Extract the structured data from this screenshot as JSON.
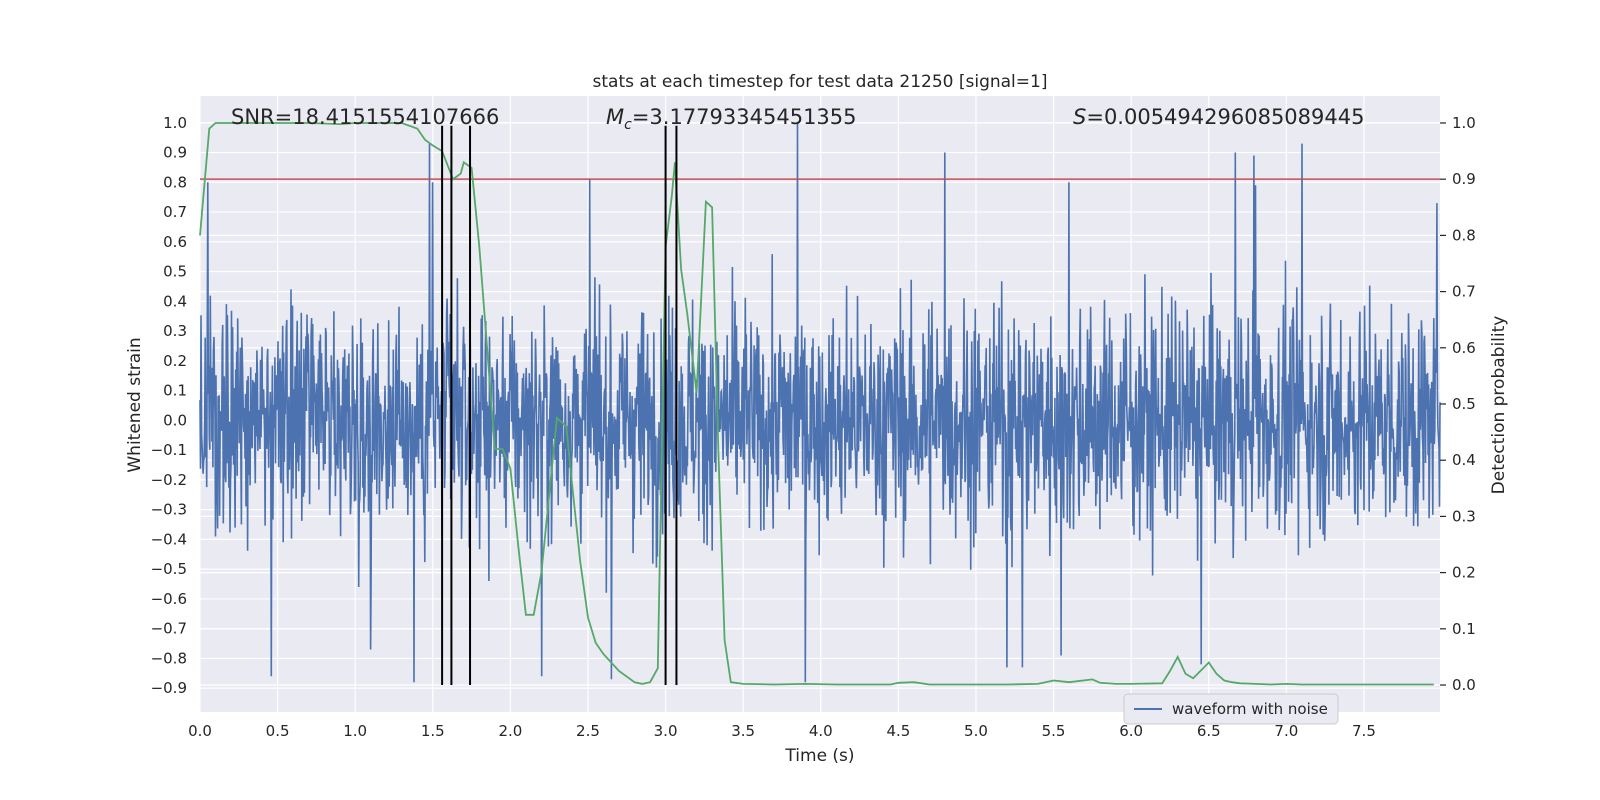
{
  "chart_data": {
    "type": "line",
    "title": "stats at each timestep for test data 21250 [signal=1]",
    "xlabel": "Time (s)",
    "ylabel": "Whitened strain",
    "ylabel_right": "Detection probability",
    "xlim": [
      0.0,
      7.99
    ],
    "ylim": [
      -0.98,
      1.09
    ],
    "ylim_right": [
      -0.048,
      1.048
    ],
    "x_ticks": [
      0.0,
      0.5,
      1.0,
      1.5,
      2.0,
      2.5,
      3.0,
      3.5,
      4.0,
      4.5,
      5.0,
      5.5,
      6.0,
      6.5,
      7.0,
      7.5
    ],
    "x_tick_labels": [
      "0.0",
      "0.5",
      "1.0",
      "1.5",
      "2.0",
      "2.5",
      "3.0",
      "3.5",
      "4.0",
      "4.5",
      "5.0",
      "5.5",
      "6.0",
      "6.5",
      "7.0",
      "7.5"
    ],
    "y_ticks": [
      -0.9,
      -0.8,
      -0.7,
      -0.6,
      -0.5,
      -0.4,
      -0.3,
      -0.2,
      -0.1,
      0.0,
      0.1,
      0.2,
      0.3,
      0.4,
      0.5,
      0.6,
      0.7,
      0.8,
      0.9,
      1.0
    ],
    "y_tick_labels": [
      "−0.9",
      "−0.8",
      "−0.7",
      "−0.6",
      "−0.5",
      "−0.4",
      "−0.3",
      "−0.2",
      "−0.1",
      "0.0",
      "0.1",
      "0.2",
      "0.3",
      "0.4",
      "0.5",
      "0.6",
      "0.7",
      "0.8",
      "0.9",
      "1.0"
    ],
    "y_right_ticks": [
      0.0,
      0.1,
      0.2,
      0.3,
      0.4,
      0.5,
      0.6,
      0.7,
      0.8,
      0.9,
      1.0
    ],
    "y_right_tick_labels": [
      "0.0",
      "0.1",
      "0.2",
      "0.3",
      "0.4",
      "0.5",
      "0.6",
      "0.7",
      "0.8",
      "0.9",
      "1.0"
    ],
    "grid": true,
    "legend_position": "lower-right",
    "annotations": {
      "snr": "SNR=18.4151554107666",
      "mc_symbol": "M",
      "mc_sub": "c",
      "mc_value": "=3.17793345451355",
      "s_symbol": "S",
      "s_value": "=0.005494296085089445"
    },
    "series": [
      {
        "name": "waveform with noise",
        "color": "#4c72b0",
        "kind": "noise",
        "amplitude_envelope": 0.42,
        "peak_spikes": [
          {
            "x": 1.48,
            "y": 0.93
          },
          {
            "x": 1.5,
            "y": 0.8
          },
          {
            "x": 2.51,
            "y": 0.81
          },
          {
            "x": 3.85,
            "y": 1.0
          },
          {
            "x": 4.8,
            "y": 0.9
          },
          {
            "x": 5.6,
            "y": 0.8
          },
          {
            "x": 6.67,
            "y": 0.9
          },
          {
            "x": 6.79,
            "y": 0.89
          },
          {
            "x": 7.1,
            "y": 0.93
          },
          {
            "x": 6.8,
            "y": 0.79
          },
          {
            "x": 0.05,
            "y": 0.8
          },
          {
            "x": 7.97,
            "y": 0.73
          },
          {
            "x": 0.46,
            "y": -0.86
          },
          {
            "x": 1.38,
            "y": -0.88
          },
          {
            "x": 2.65,
            "y": -0.87
          },
          {
            "x": 3.9,
            "y": -0.88
          },
          {
            "x": 1.1,
            "y": -0.77
          },
          {
            "x": 5.3,
            "y": -0.83
          },
          {
            "x": 5.2,
            "y": -0.83
          },
          {
            "x": 6.45,
            "y": -0.82
          },
          {
            "x": 5.55,
            "y": -0.79
          },
          {
            "x": 2.2,
            "y": -0.86
          },
          {
            "x": 3.0,
            "y": -0.78
          }
        ]
      },
      {
        "name": "",
        "color": "#55a868",
        "axis": "right",
        "x": [
          0.0,
          0.06,
          0.1,
          0.2,
          0.3,
          0.5,
          0.7,
          0.8,
          0.9,
          1.0,
          1.2,
          1.3,
          1.4,
          1.45,
          1.5,
          1.56,
          1.63,
          1.68,
          1.7,
          1.75,
          1.8,
          1.85,
          1.9,
          1.95,
          2.0,
          2.05,
          2.1,
          2.15,
          2.2,
          2.3,
          2.36,
          2.4,
          2.45,
          2.5,
          2.55,
          2.6,
          2.7,
          2.8,
          2.85,
          2.9,
          2.95,
          3.0,
          3.04,
          3.06,
          3.1,
          3.14,
          3.2,
          3.26,
          3.3,
          3.34,
          3.38,
          3.42,
          3.5,
          3.7,
          3.9,
          4.1,
          4.3,
          4.45,
          4.5,
          4.6,
          4.7,
          4.85,
          5.0,
          5.2,
          5.4,
          5.5,
          5.6,
          5.75,
          5.8,
          5.9,
          6.0,
          6.2,
          6.25,
          6.3,
          6.35,
          6.4,
          6.5,
          6.55,
          6.6,
          6.65,
          6.7,
          6.8,
          6.9,
          7.0,
          7.1,
          7.2,
          7.4,
          7.6,
          7.8,
          7.95
        ],
        "values": [
          0.8,
          0.99,
          1.0,
          1.0,
          1.0,
          1.0,
          1.0,
          0.999,
          0.998,
          1.0,
          1.0,
          1.0,
          0.99,
          0.97,
          0.96,
          0.95,
          0.9,
          0.91,
          0.93,
          0.92,
          0.78,
          0.6,
          0.42,
          0.42,
          0.385,
          0.25,
          0.125,
          0.125,
          0.2,
          0.475,
          0.46,
          0.35,
          0.22,
          0.12,
          0.075,
          0.055,
          0.025,
          0.005,
          0.002,
          0.005,
          0.03,
          0.78,
          0.87,
          0.93,
          0.74,
          0.66,
          0.52,
          0.86,
          0.85,
          0.42,
          0.08,
          0.005,
          0.002,
          0.001,
          0.002,
          0.001,
          0.001,
          0.001,
          0.004,
          0.005,
          0.001,
          0.001,
          0.001,
          0.001,
          0.002,
          0.008,
          0.005,
          0.01,
          0.004,
          0.002,
          0.002,
          0.003,
          0.025,
          0.05,
          0.02,
          0.012,
          0.04,
          0.02,
          0.008,
          0.005,
          0.003,
          0.002,
          0.001,
          0.002,
          0.001,
          0.001,
          0.001,
          0.001,
          0.001,
          0.001
        ]
      },
      {
        "name": "",
        "color": "#c44e52",
        "kind": "hline",
        "axis": "right",
        "value": 0.9
      }
    ],
    "vlines": [
      1.56,
      1.62,
      1.74,
      3.0,
      3.07
    ],
    "vline_color": "#000000"
  }
}
